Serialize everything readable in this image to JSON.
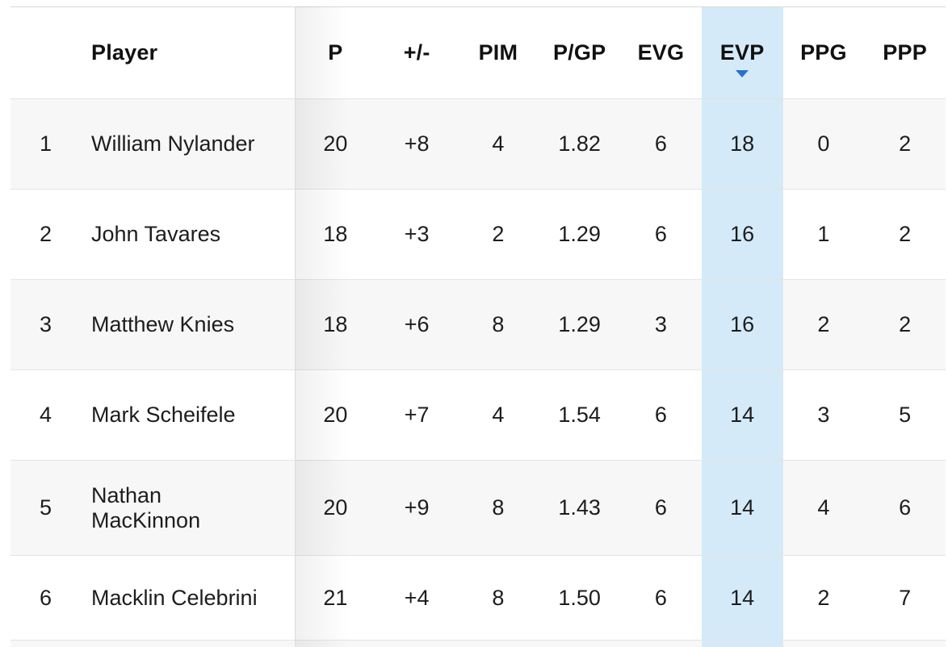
{
  "table": {
    "sort": {
      "sorted_column": "EVP",
      "direction": "desc"
    },
    "columns": {
      "rank": "",
      "player": "Player",
      "p": "P",
      "plus_minus": "+/-",
      "pim": "PIM",
      "p_gp": "P/GP",
      "evg": "EVG",
      "evp": "EVP",
      "ppg": "PPG",
      "ppp": "PPP"
    },
    "rows": [
      {
        "rank": "1",
        "player": "William Nylander",
        "p": "20",
        "plus_minus": "+8",
        "pim": "4",
        "p_gp": "1.82",
        "evg": "6",
        "evp": "18",
        "ppg": "0",
        "ppp": "2"
      },
      {
        "rank": "2",
        "player": "John Tavares",
        "p": "18",
        "plus_minus": "+3",
        "pim": "2",
        "p_gp": "1.29",
        "evg": "6",
        "evp": "16",
        "ppg": "1",
        "ppp": "2"
      },
      {
        "rank": "3",
        "player": "Matthew Knies",
        "p": "18",
        "plus_minus": "+6",
        "pim": "8",
        "p_gp": "1.29",
        "evg": "3",
        "evp": "16",
        "ppg": "2",
        "ppp": "2"
      },
      {
        "rank": "4",
        "player": "Mark Scheifele",
        "p": "20",
        "plus_minus": "+7",
        "pim": "4",
        "p_gp": "1.54",
        "evg": "6",
        "evp": "14",
        "ppg": "3",
        "ppp": "5"
      },
      {
        "rank": "5",
        "player": "Nathan MacKinnon",
        "p": "20",
        "plus_minus": "+9",
        "pim": "8",
        "p_gp": "1.43",
        "evg": "6",
        "evp": "14",
        "ppg": "4",
        "ppp": "6"
      },
      {
        "rank": "6",
        "player": "Macklin Celebrini",
        "p": "21",
        "plus_minus": "+4",
        "pim": "8",
        "p_gp": "1.50",
        "evg": "6",
        "evp": "14",
        "ppg": "2",
        "ppp": "7"
      }
    ]
  },
  "colors": {
    "sorted_column_highlight": "#d5eaf8",
    "sort_arrow": "#2a6fd1",
    "row_stripe": "#f7f7f7",
    "divider": "#dcdcdc",
    "text": "#1d1d1d"
  },
  "icons": {
    "sort_desc": "filled-down-triangle"
  }
}
